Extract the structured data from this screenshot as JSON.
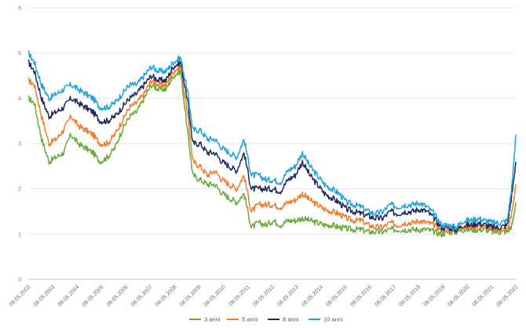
{
  "chart_data": {
    "type": "line",
    "title": "",
    "xlabel": "",
    "ylabel": "",
    "ylim": [
      0,
      6
    ],
    "yticks": [
      "0",
      "1",
      "2",
      "3",
      "4",
      "5",
      "6"
    ],
    "grid": "horizontal",
    "legend_position": "bottom",
    "xticks": [
      "08.05.2002",
      "08.05.2003",
      "08.05.2004",
      "08.05.2005",
      "08.05.2006",
      "08.05.2007",
      "08.05.2008",
      "08.05.2009",
      "08.05.2010",
      "08.05.2011",
      "08.05.2012",
      "08.05.2013",
      "08.05.2014",
      "08.05.2015",
      "08.05.2016",
      "08.05.2017",
      "08.05.2018",
      "08.05.2019",
      "08.05.2020",
      "08.05.2021",
      "08.05.2022"
    ],
    "x": [
      2002.35,
      2002.6,
      2002.9,
      2003.2,
      2003.5,
      2003.8,
      2004.1,
      2004.4,
      2004.7,
      2005.0,
      2005.3,
      2005.6,
      2005.9,
      2006.2,
      2006.5,
      2006.8,
      2007.1,
      2007.4,
      2007.7,
      2008.0,
      2008.3,
      2008.6,
      2008.9,
      2009.1,
      2009.4,
      2009.7,
      2010.0,
      2010.3,
      2010.6,
      2010.9,
      2011.2,
      2011.5,
      2011.8,
      2012.1,
      2012.4,
      2012.7,
      2013.0,
      2013.3,
      2013.6,
      2013.9,
      2014.2,
      2014.5,
      2014.8,
      2015.1,
      2015.4,
      2015.7,
      2016.0,
      2016.3,
      2016.6,
      2016.9,
      2017.2,
      2017.5,
      2017.8,
      2018.1,
      2018.4,
      2018.7,
      2019.0,
      2019.3,
      2019.6,
      2019.9,
      2020.2,
      2020.5,
      2020.8,
      2021.1,
      2021.4,
      2021.7,
      2022.0,
      2022.2,
      2022.35
    ],
    "series": [
      {
        "name": "3 anni",
        "color": "#6aaa3a",
        "values": [
          4.0,
          3.9,
          3.1,
          2.6,
          2.7,
          2.8,
          3.2,
          3.0,
          2.9,
          2.8,
          2.6,
          2.7,
          2.9,
          3.3,
          3.6,
          3.7,
          4.0,
          4.3,
          4.2,
          4.2,
          4.5,
          4.6,
          3.2,
          2.3,
          2.2,
          2.1,
          2.1,
          1.9,
          1.8,
          1.7,
          1.9,
          1.15,
          1.25,
          1.2,
          1.3,
          1.2,
          1.3,
          1.3,
          1.35,
          1.3,
          1.25,
          1.2,
          1.2,
          1.15,
          1.12,
          1.1,
          1.1,
          1.05,
          1.05,
          1.05,
          1.1,
          1.1,
          1.1,
          1.1,
          1.1,
          1.1,
          1.05,
          1.0,
          1.05,
          1.05,
          1.1,
          1.1,
          1.1,
          1.1,
          1.05,
          1.05,
          1.05,
          1.2,
          1.7
        ]
      },
      {
        "name": "5 anni",
        "color": "#ed7d31",
        "values": [
          4.4,
          4.3,
          3.6,
          3.0,
          3.1,
          3.3,
          3.6,
          3.4,
          3.3,
          3.2,
          3.0,
          3.0,
          3.2,
          3.5,
          3.8,
          3.9,
          4.1,
          4.4,
          4.3,
          4.3,
          4.6,
          4.7,
          3.6,
          2.6,
          2.5,
          2.3,
          2.4,
          2.2,
          2.1,
          2.0,
          2.3,
          1.5,
          1.65,
          1.65,
          1.65,
          1.6,
          1.7,
          1.75,
          1.9,
          1.75,
          1.65,
          1.55,
          1.5,
          1.45,
          1.35,
          1.3,
          1.3,
          1.2,
          1.15,
          1.15,
          1.25,
          1.2,
          1.25,
          1.25,
          1.3,
          1.25,
          1.2,
          1.1,
          1.1,
          1.1,
          1.15,
          1.15,
          1.2,
          1.15,
          1.1,
          1.1,
          1.1,
          1.5,
          2.1
        ]
      },
      {
        "name": "8 anni",
        "color": "#1f2a5c",
        "values": [
          4.8,
          4.6,
          4.0,
          3.6,
          3.7,
          3.8,
          4.0,
          3.9,
          3.8,
          3.7,
          3.5,
          3.5,
          3.6,
          3.8,
          4.0,
          4.1,
          4.3,
          4.5,
          4.4,
          4.4,
          4.7,
          4.8,
          3.9,
          3.0,
          3.0,
          2.8,
          2.8,
          2.6,
          2.5,
          2.4,
          2.8,
          2.0,
          2.0,
          2.0,
          2.0,
          1.95,
          2.2,
          2.3,
          2.6,
          2.3,
          2.1,
          1.9,
          1.8,
          1.7,
          1.55,
          1.5,
          1.45,
          1.4,
          1.35,
          1.35,
          1.5,
          1.45,
          1.5,
          1.5,
          1.55,
          1.5,
          1.35,
          1.15,
          1.15,
          1.1,
          1.2,
          1.2,
          1.25,
          1.2,
          1.15,
          1.15,
          1.2,
          1.9,
          2.6
        ]
      },
      {
        "name": "10 anni",
        "color": "#1fa3dc",
        "values": [
          5.0,
          4.8,
          4.3,
          4.0,
          4.1,
          4.2,
          4.3,
          4.2,
          4.1,
          4.0,
          3.8,
          3.8,
          3.9,
          4.1,
          4.3,
          4.3,
          4.5,
          4.7,
          4.6,
          4.6,
          4.8,
          4.9,
          4.1,
          3.3,
          3.3,
          3.1,
          3.1,
          2.9,
          2.8,
          2.7,
          3.1,
          2.3,
          2.3,
          2.2,
          2.2,
          2.15,
          2.4,
          2.5,
          2.8,
          2.5,
          2.3,
          2.1,
          2.0,
          1.9,
          1.7,
          1.65,
          1.6,
          1.5,
          1.45,
          1.5,
          1.65,
          1.6,
          1.65,
          1.65,
          1.7,
          1.6,
          1.45,
          1.2,
          1.2,
          1.15,
          1.3,
          1.3,
          1.35,
          1.3,
          1.25,
          1.25,
          1.3,
          2.1,
          3.2
        ]
      }
    ]
  }
}
